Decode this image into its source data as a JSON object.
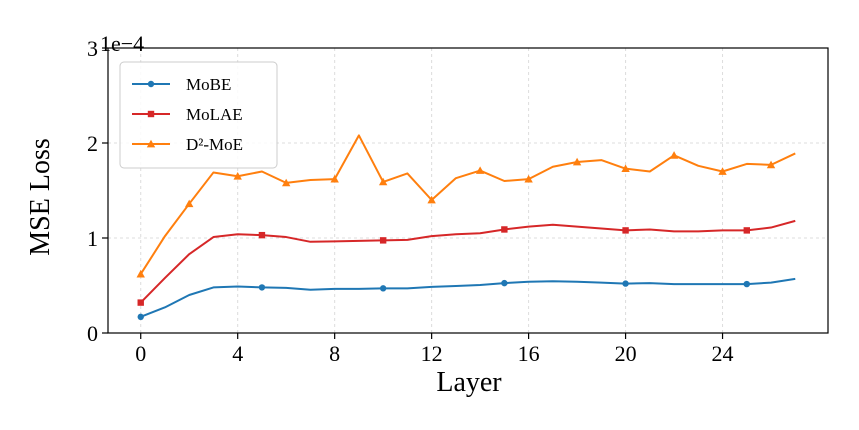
{
  "chart_data": {
    "type": "line",
    "x": [
      0,
      1,
      2,
      3,
      4,
      5,
      6,
      7,
      8,
      9,
      10,
      11,
      12,
      13,
      14,
      15,
      16,
      17,
      18,
      19,
      20,
      21,
      22,
      23,
      24,
      25,
      26,
      27
    ],
    "xlabel": "Layer",
    "ylabel": "MSE Loss",
    "y_scale_label": "1e−4",
    "xticks": [
      "0",
      "4",
      "8",
      "12",
      "16",
      "20",
      "24"
    ],
    "yticks": [
      "0",
      "1",
      "2",
      "3"
    ],
    "xlim": [
      -1.35,
      28.35
    ],
    "ylim": [
      0,
      3
    ],
    "grid": true,
    "legend_position": "top-left",
    "series": [
      {
        "name": "MoBE",
        "color": "#1f77b4",
        "marker": "circle",
        "markevery": 5,
        "values": [
          0.17,
          0.27,
          0.4,
          0.48,
          0.49,
          0.48,
          0.475,
          0.455,
          0.465,
          0.465,
          0.47,
          0.47,
          0.485,
          0.495,
          0.505,
          0.525,
          0.54,
          0.545,
          0.54,
          0.53,
          0.52,
          0.525,
          0.515,
          0.515,
          0.515,
          0.515,
          0.53,
          0.57
        ]
      },
      {
        "name": "MoLAE",
        "color": "#d62728",
        "marker": "square",
        "markevery": 5,
        "values": [
          0.32,
          0.58,
          0.83,
          1.01,
          1.04,
          1.03,
          1.01,
          0.96,
          0.965,
          0.97,
          0.975,
          0.98,
          1.02,
          1.04,
          1.05,
          1.09,
          1.12,
          1.14,
          1.12,
          1.1,
          1.08,
          1.09,
          1.07,
          1.07,
          1.08,
          1.08,
          1.11,
          1.18
        ]
      },
      {
        "name": "D²-MoE",
        "color": "#ff7f0e",
        "marker": "triangle",
        "markevery": 2,
        "values": [
          0.62,
          1.02,
          1.36,
          1.69,
          1.65,
          1.7,
          1.58,
          1.61,
          1.62,
          2.08,
          1.59,
          1.68,
          1.4,
          1.63,
          1.71,
          1.6,
          1.62,
          1.75,
          1.8,
          1.82,
          1.73,
          1.7,
          1.87,
          1.76,
          1.7,
          1.78,
          1.77,
          1.89
        ]
      }
    ]
  }
}
